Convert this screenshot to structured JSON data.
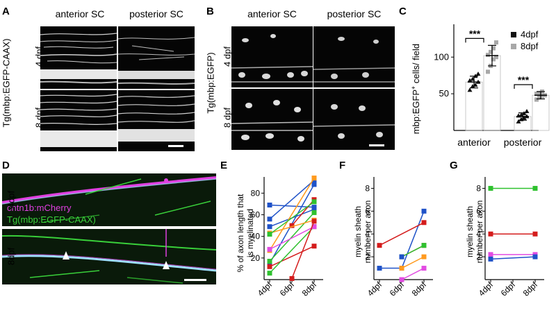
{
  "panels": {
    "A": {
      "letter": "A",
      "col_headers": [
        "anterior SC",
        "posterior SC"
      ],
      "row_labels": [
        "4 dpf",
        "8 dpf"
      ],
      "transgene_label": "Tg(mbp:EGFP-CAAX)"
    },
    "B": {
      "letter": "B",
      "col_headers": [
        "anterior SC",
        "posterior SC"
      ],
      "row_labels": [
        "4 dpf",
        "8 dpf"
      ],
      "transgene_label": "Tg(mbp:EGFP)"
    },
    "C": {
      "letter": "C",
      "ylabel_main": "mbp:EGFP",
      "ylabel_sup": "+",
      "ylabel_rest": " cells/ field",
      "legend": [
        "4dpf",
        "8dpf"
      ],
      "significance": [
        "***",
        "***"
      ],
      "colors": {
        "4dpf": "#111111",
        "8dpf": "#a8a8a8"
      }
    },
    "D": {
      "letter": "D",
      "row_labels": [
        "4dpf",
        "8dpf"
      ],
      "label_mcherry": "cntn1b:mCherry",
      "label_egfp": "Tg(mbp:EGFP-CAAX)",
      "colors": {
        "mcherry": "#e040e0",
        "egfp": "#39d03a"
      }
    },
    "E": {
      "letter": "E",
      "ylabel": [
        "% of axon length that",
        "is myelinated"
      ]
    },
    "F": {
      "letter": "F",
      "ylabel": [
        "myelin sheath",
        "number per axon"
      ]
    },
    "G": {
      "letter": "G",
      "ylabel": [
        "myelin sheath",
        "number per axon"
      ]
    }
  },
  "chart_data": [
    {
      "panel": "C",
      "type": "bar",
      "categories": [
        "anterior",
        "posterior"
      ],
      "series": [
        {
          "name": "4dpf",
          "values": [
            66,
            19
          ],
          "err": [
            8,
            5
          ],
          "points": [
            [
              55,
              60,
              62,
              66,
              68,
              70,
              74,
              77
            ],
            [
              12,
              15,
              17,
              19,
              20,
              21,
              23,
              26
            ]
          ]
        },
        {
          "name": "8dpf",
          "values": [
            102,
            48
          ],
          "err": [
            14,
            5
          ],
          "points": [
            [
              80,
              88,
              97,
              100,
              103,
              107,
              112,
              120
            ],
            [
              42,
              45,
              47,
              48,
              50,
              51,
              53
            ]
          ]
        }
      ],
      "yticks": [
        50,
        100
      ],
      "ylim": [
        0,
        140
      ],
      "significance": [
        "***",
        "***"
      ]
    },
    {
      "panel": "E",
      "type": "line",
      "x": [
        "4dpf",
        "6dpf",
        "8dpf"
      ],
      "yticks": [
        20,
        40,
        60,
        80
      ],
      "ylim": [
        0,
        95
      ],
      "series": [
        {
          "color": "#1f52c8",
          "values": [
            15,
            null,
            88
          ]
        },
        {
          "color": "#1f52c8",
          "values": [
            69,
            null,
            67
          ]
        },
        {
          "color": "#1f52c8",
          "values": [
            56,
            null,
            92
          ]
        },
        {
          "color": "#1f52c8",
          "values": [
            49,
            null,
            65
          ]
        },
        {
          "color": "#ff9a1f",
          "values": [
            27,
            null,
            94
          ]
        },
        {
          "color": "#d41c1c",
          "values": [
            null,
            50,
            74
          ]
        },
        {
          "color": "#d41c1c",
          "values": [
            12,
            null,
            31
          ]
        },
        {
          "color": "#2fc12f",
          "values": [
            6,
            null,
            49
          ]
        },
        {
          "color": "#2fc12f",
          "values": [
            17,
            null,
            62
          ]
        },
        {
          "color": "#e24ce2",
          "values": [
            28,
            null,
            49
          ]
        },
        {
          "color": "#ff9a1f",
          "values": [
            43,
            null,
            55
          ]
        },
        {
          "color": "#d41c1c",
          "values": [
            null,
            1,
            54
          ]
        },
        {
          "color": "#2fc12f",
          "values": [
            42,
            null,
            72
          ]
        }
      ]
    },
    {
      "panel": "F",
      "type": "line",
      "x": [
        "4dpf",
        "6dpf",
        "8dpf"
      ],
      "yticks": [
        2,
        4,
        6,
        8
      ],
      "ylim": [
        0,
        9
      ],
      "series": [
        {
          "color": "#1f52c8",
          "values": [
            1,
            1,
            6
          ]
        },
        {
          "color": "#d41c1c",
          "values": [
            3,
            null,
            5
          ]
        },
        {
          "color": "#d41c1c",
          "values": [
            null,
            2,
            3
          ]
        },
        {
          "color": "#2fc12f",
          "values": [
            null,
            2,
            3
          ]
        },
        {
          "color": "#ff9a1f",
          "values": [
            null,
            1,
            2
          ]
        },
        {
          "color": "#e24ce2",
          "values": [
            null,
            0,
            1
          ]
        },
        {
          "color": "#1f52c8",
          "values": [
            null,
            2,
            null
          ]
        }
      ]
    },
    {
      "panel": "G",
      "type": "line",
      "x": [
        "4dpf",
        "6dpf",
        "8dpf"
      ],
      "yticks": [
        2,
        4,
        6,
        8
      ],
      "ylim": [
        0,
        9
      ],
      "series": [
        {
          "color": "#2fc12f",
          "values": [
            8,
            null,
            8
          ]
        },
        {
          "color": "#d41c1c",
          "values": [
            4,
            null,
            4
          ]
        },
        {
          "color": "#e24ce2",
          "values": [
            2.2,
            null,
            2.2
          ]
        },
        {
          "color": "#1f52c8",
          "values": [
            1.8,
            null,
            2
          ]
        }
      ]
    }
  ]
}
